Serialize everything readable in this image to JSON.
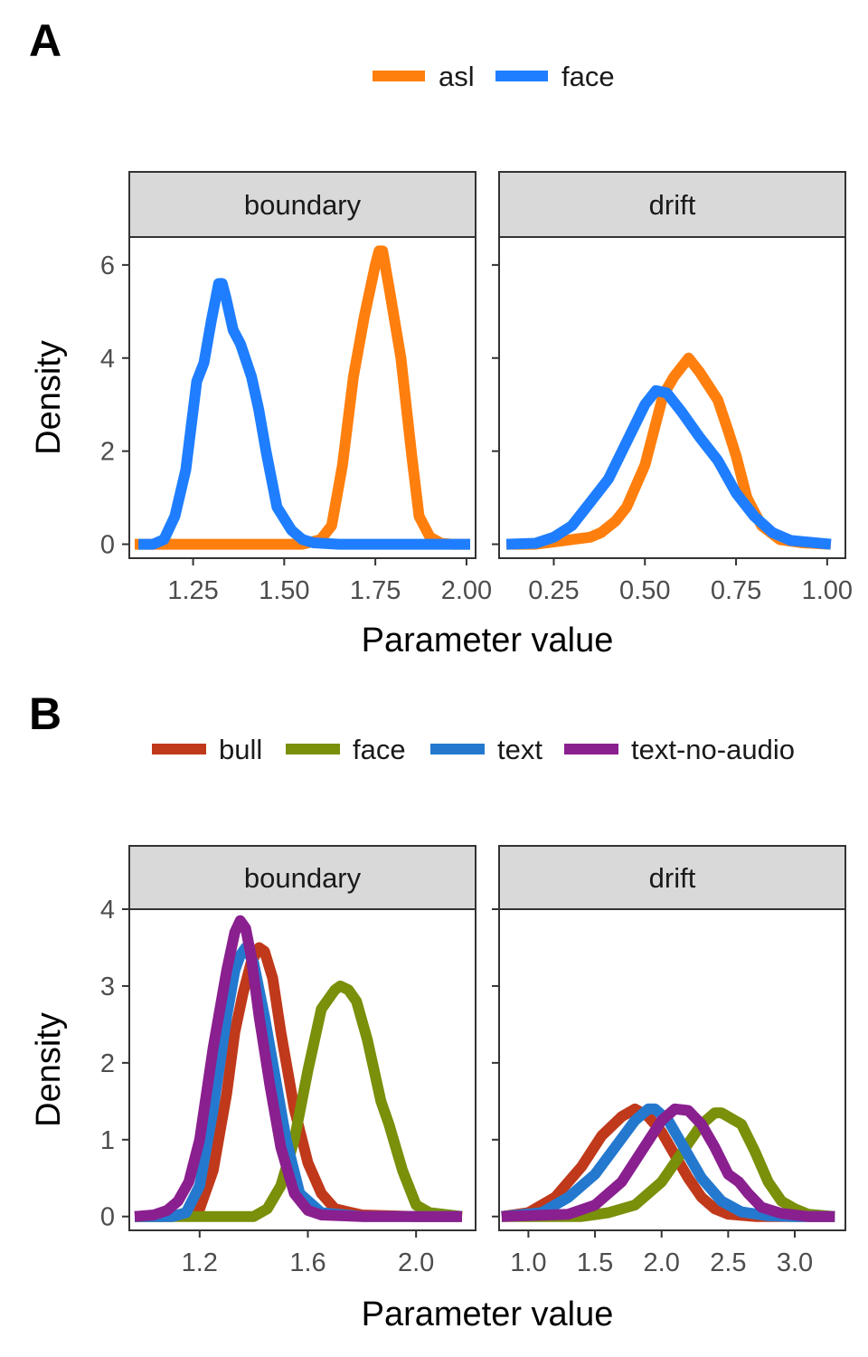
{
  "chart_data": [
    {
      "type": "line",
      "panel_label": "A",
      "xlabel": "Parameter value",
      "ylabel": "Density",
      "legend": [
        {
          "name": "asl",
          "color": "#FF7F0E"
        },
        {
          "name": "face",
          "color": "#1F7EFF"
        }
      ],
      "facets": [
        {
          "name": "boundary",
          "xlim": [
            1.075,
            2.025
          ],
          "ylim": [
            -0.3,
            6.6
          ],
          "xticks": [
            1.25,
            1.5,
            1.75,
            2.0
          ],
          "xtick_labels": [
            "1.25",
            "1.50",
            "1.75",
            "2.00"
          ],
          "yticks": [
            0,
            2,
            4,
            6
          ],
          "ytick_labels": [
            "0",
            "2",
            "4",
            "6"
          ],
          "series": [
            {
              "name": "asl",
              "x": [
                1.09,
                1.55,
                1.6,
                1.63,
                1.66,
                1.69,
                1.72,
                1.75,
                1.76,
                1.77,
                1.79,
                1.82,
                1.85,
                1.87,
                1.9,
                1.93,
                1.96,
                2.01
              ],
              "y": [
                0,
                0,
                0.1,
                0.4,
                1.7,
                3.6,
                4.9,
                6.0,
                6.3,
                6.3,
                5.4,
                4.0,
                1.9,
                0.6,
                0.15,
                0.02,
                0,
                0
              ]
            },
            {
              "name": "face",
              "x": [
                1.1,
                1.14,
                1.17,
                1.2,
                1.23,
                1.26,
                1.28,
                1.3,
                1.32,
                1.33,
                1.34,
                1.36,
                1.38,
                1.41,
                1.43,
                1.45,
                1.48,
                1.52,
                1.55,
                1.58,
                1.65,
                1.8,
                2.01
              ],
              "y": [
                0,
                0,
                0.1,
                0.6,
                1.6,
                3.5,
                3.9,
                4.8,
                5.6,
                5.6,
                5.3,
                4.6,
                4.3,
                3.6,
                2.9,
                2.0,
                0.8,
                0.3,
                0.1,
                0.03,
                0,
                0,
                0
              ]
            }
          ]
        },
        {
          "name": "drift",
          "xlim": [
            0.1,
            1.05
          ],
          "ylim": [
            -0.3,
            6.6
          ],
          "xticks": [
            0.25,
            0.5,
            0.75,
            1.0
          ],
          "xtick_labels": [
            "0.25",
            "0.50",
            "0.75",
            "1.00"
          ],
          "yticks": [
            0,
            2,
            4,
            6
          ],
          "series": [
            {
              "name": "asl",
              "x": [
                0.12,
                0.2,
                0.25,
                0.3,
                0.35,
                0.38,
                0.42,
                0.45,
                0.5,
                0.55,
                0.58,
                0.62,
                0.65,
                0.7,
                0.73,
                0.75,
                0.78,
                0.82,
                0.87,
                0.93,
                1.01
              ],
              "y": [
                0,
                0,
                0.05,
                0.1,
                0.15,
                0.25,
                0.5,
                0.8,
                1.7,
                3.2,
                3.6,
                4.0,
                3.7,
                3.1,
                2.4,
                1.9,
                1.0,
                0.4,
                0.1,
                0.03,
                0
              ]
            },
            {
              "name": "face",
              "x": [
                0.12,
                0.2,
                0.25,
                0.3,
                0.35,
                0.4,
                0.45,
                0.5,
                0.53,
                0.56,
                0.6,
                0.65,
                0.7,
                0.75,
                0.8,
                0.85,
                0.9,
                1.01
              ],
              "y": [
                0,
                0.02,
                0.15,
                0.4,
                0.9,
                1.4,
                2.2,
                3.0,
                3.3,
                3.25,
                2.85,
                2.3,
                1.8,
                1.1,
                0.6,
                0.25,
                0.08,
                0
              ]
            }
          ]
        }
      ]
    },
    {
      "type": "line",
      "panel_label": "B",
      "xlabel": "Parameter value",
      "ylabel": "Density",
      "legend": [
        {
          "name": "bull",
          "color": "#C0391B"
        },
        {
          "name": "face",
          "color": "#7A8F0A"
        },
        {
          "name": "text",
          "color": "#2479CF"
        },
        {
          "name": "text-no-audio",
          "color": "#8A1F8F"
        }
      ],
      "facets": [
        {
          "name": "boundary",
          "xlim": [
            0.94,
            2.22
          ],
          "ylim": [
            -0.18,
            4.0
          ],
          "xticks": [
            1.2,
            1.6,
            2.0
          ],
          "xtick_labels": [
            "1.2",
            "1.6",
            "2.0"
          ],
          "yticks": [
            0,
            1,
            2,
            3,
            4
          ],
          "ytick_labels": [
            "0",
            "1",
            "2",
            "3",
            "4"
          ],
          "series": [
            {
              "name": "bull",
              "x": [
                0.96,
                1.1,
                1.2,
                1.25,
                1.3,
                1.33,
                1.36,
                1.39,
                1.42,
                1.44,
                1.47,
                1.5,
                1.55,
                1.6,
                1.65,
                1.7,
                1.8,
                2.0,
                2.17
              ],
              "y": [
                0,
                0,
                0.1,
                0.6,
                1.6,
                2.4,
                2.9,
                3.3,
                3.5,
                3.45,
                3.1,
                2.4,
                1.4,
                0.7,
                0.3,
                0.1,
                0.02,
                0,
                0
              ]
            },
            {
              "name": "face",
              "x": [
                0.96,
                1.2,
                1.4,
                1.45,
                1.5,
                1.55,
                1.6,
                1.65,
                1.7,
                1.72,
                1.75,
                1.78,
                1.82,
                1.87,
                1.9,
                1.95,
                2.0,
                2.05,
                2.17
              ],
              "y": [
                0,
                0,
                0,
                0.1,
                0.4,
                1.0,
                1.9,
                2.7,
                2.95,
                3.0,
                2.95,
                2.8,
                2.3,
                1.5,
                1.2,
                0.6,
                0.15,
                0.05,
                0
              ]
            },
            {
              "name": "text",
              "x": [
                0.96,
                1.1,
                1.15,
                1.2,
                1.25,
                1.3,
                1.33,
                1.35,
                1.37,
                1.4,
                1.44,
                1.48,
                1.52,
                1.57,
                1.65,
                1.8,
                2.17
              ],
              "y": [
                0,
                0,
                0.05,
                0.4,
                1.4,
                2.6,
                3.2,
                3.4,
                3.5,
                3.3,
                2.6,
                1.8,
                1.0,
                0.3,
                0.05,
                0,
                0
              ]
            },
            {
              "name": "text-no-audio",
              "x": [
                0.96,
                1.03,
                1.08,
                1.12,
                1.16,
                1.2,
                1.25,
                1.3,
                1.33,
                1.35,
                1.37,
                1.39,
                1.42,
                1.46,
                1.5,
                1.55,
                1.6,
                1.65,
                1.8,
                2.17
              ],
              "y": [
                0,
                0.02,
                0.08,
                0.2,
                0.45,
                1.0,
                2.2,
                3.2,
                3.7,
                3.85,
                3.75,
                3.4,
                2.6,
                1.7,
                0.9,
                0.3,
                0.08,
                0.02,
                0,
                0
              ]
            }
          ]
        },
        {
          "name": "drift",
          "xlim": [
            0.78,
            3.38
          ],
          "ylim": [
            -0.18,
            4.0
          ],
          "xticks": [
            1.0,
            1.5,
            2.0,
            2.5,
            3.0
          ],
          "xtick_labels": [
            "1.0",
            "1.5",
            "2.0",
            "2.5",
            "3.0"
          ],
          "yticks": [
            0,
            1,
            2,
            3,
            4
          ],
          "series": [
            {
              "name": "bull",
              "x": [
                0.8,
                1.0,
                1.2,
                1.4,
                1.55,
                1.7,
                1.8,
                1.9,
                2.0,
                2.1,
                2.2,
                2.3,
                2.4,
                2.5,
                2.7,
                3.0,
                3.3
              ],
              "y": [
                0,
                0.05,
                0.25,
                0.65,
                1.05,
                1.3,
                1.4,
                1.3,
                1.1,
                0.8,
                0.5,
                0.25,
                0.1,
                0.03,
                0,
                0,
                0
              ]
            },
            {
              "name": "face",
              "x": [
                0.8,
                1.4,
                1.6,
                1.8,
                2.0,
                2.1,
                2.2,
                2.3,
                2.4,
                2.45,
                2.5,
                2.6,
                2.7,
                2.8,
                2.9,
                3.0,
                3.1,
                3.3
              ],
              "y": [
                0,
                0,
                0.05,
                0.15,
                0.45,
                0.7,
                0.95,
                1.2,
                1.35,
                1.35,
                1.3,
                1.2,
                0.85,
                0.45,
                0.2,
                0.1,
                0.03,
                0
              ]
            },
            {
              "name": "text",
              "x": [
                0.8,
                1.1,
                1.3,
                1.5,
                1.65,
                1.8,
                1.9,
                1.95,
                2.05,
                2.15,
                2.3,
                2.45,
                2.6,
                2.8,
                3.0,
                3.3
              ],
              "y": [
                0,
                0.05,
                0.25,
                0.55,
                0.9,
                1.25,
                1.4,
                1.4,
                1.25,
                0.95,
                0.5,
                0.2,
                0.06,
                0.01,
                0,
                0
              ]
            },
            {
              "name": "text-no-audio",
              "x": [
                0.8,
                1.3,
                1.5,
                1.7,
                1.85,
                2.0,
                2.1,
                2.2,
                2.3,
                2.4,
                2.5,
                2.58,
                2.65,
                2.75,
                2.9,
                3.1,
                3.3
              ],
              "y": [
                0,
                0.03,
                0.15,
                0.45,
                0.85,
                1.25,
                1.4,
                1.38,
                1.2,
                0.9,
                0.55,
                0.45,
                0.3,
                0.12,
                0.04,
                0,
                0
              ]
            }
          ]
        }
      ]
    }
  ]
}
